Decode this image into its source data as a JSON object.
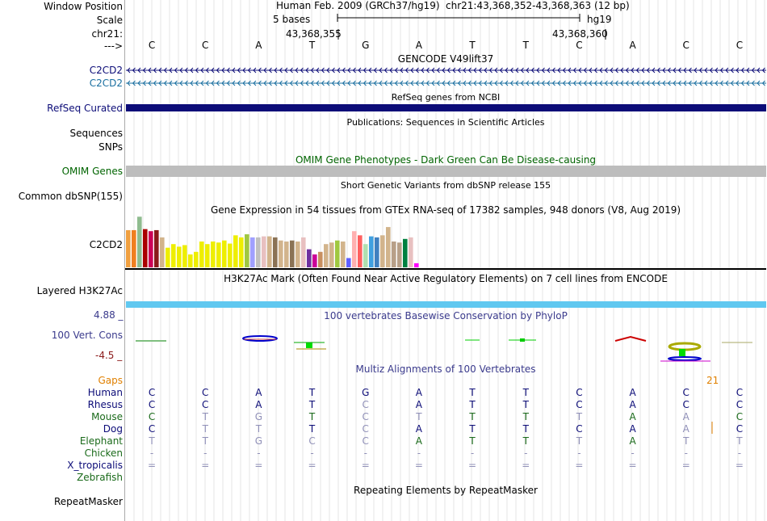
{
  "header": {
    "window_position_label": "Window Position",
    "assembly": "Human Feb. 2009 (GRCh37/hg19)",
    "position": "chr21:43,368,352-43,368,363 (12 bp)",
    "scale_label": "Scale",
    "scale_text": "5 bases",
    "scale_db": "hg19",
    "chrom_label": "chr21:",
    "pos_left": "43,368,355",
    "pos_right": "43,368,360",
    "strand_label": "--->"
  },
  "bases": [
    "C",
    "C",
    "A",
    "T",
    "G",
    "A",
    "T",
    "T",
    "C",
    "A",
    "C",
    "C"
  ],
  "gencode": {
    "title": "GENCODE V49lift37",
    "tracks": [
      {
        "label": "C2CD2",
        "color": "#0c0c78"
      },
      {
        "label": "C2CD2",
        "color": "#1a6fa0"
      }
    ]
  },
  "refseq": {
    "title": "RefSeq genes from NCBI",
    "label": "RefSeq Curated",
    "color": "#0c0c78"
  },
  "publications": {
    "title": "Publications: Sequences in Scientific Articles",
    "label1": "Sequences",
    "label2": "SNPs"
  },
  "omim": {
    "title": "OMIM Gene Phenotypes - Dark Green Can Be Disease-causing",
    "label": "OMIM Genes",
    "color": "#006400"
  },
  "dbsnp": {
    "title": "Short Genetic Variants from dbSNP release 155",
    "label": "Common dbSNP(155)"
  },
  "gtex": {
    "title": "Gene Expression in 54 tissues from GTEx RNA-seq of 17382 samples, 948 donors (V8, Aug 2019)",
    "label": "C2CD2",
    "bars": [
      {
        "v": 0.72,
        "c": "#f0a040"
      },
      {
        "v": 0.72,
        "c": "#f07f20"
      },
      {
        "v": 0.98,
        "c": "#8fbc8f"
      },
      {
        "v": 0.74,
        "c": "#aa0000"
      },
      {
        "v": 0.7,
        "c": "#cc0055"
      },
      {
        "v": 0.72,
        "c": "#8b1a1a"
      },
      {
        "v": 0.58,
        "c": "#d2b48c"
      },
      {
        "v": 0.38,
        "c": "#eeee00"
      },
      {
        "v": 0.45,
        "c": "#eeee00"
      },
      {
        "v": 0.4,
        "c": "#eeee00"
      },
      {
        "v": 0.43,
        "c": "#eeee00"
      },
      {
        "v": 0.25,
        "c": "#eeee00"
      },
      {
        "v": 0.3,
        "c": "#eeee00"
      },
      {
        "v": 0.5,
        "c": "#eeee00"
      },
      {
        "v": 0.45,
        "c": "#eeee00"
      },
      {
        "v": 0.5,
        "c": "#eeee00"
      },
      {
        "v": 0.48,
        "c": "#eeee00"
      },
      {
        "v": 0.52,
        "c": "#eeee00"
      },
      {
        "v": 0.46,
        "c": "#eeee00"
      },
      {
        "v": 0.62,
        "c": "#eeee00"
      },
      {
        "v": 0.58,
        "c": "#eeee00"
      },
      {
        "v": 0.64,
        "c": "#a0c840"
      },
      {
        "v": 0.58,
        "c": "#a0a0ff"
      },
      {
        "v": 0.58,
        "c": "#c0c0c0"
      },
      {
        "v": 0.6,
        "c": "#e8c0c0"
      },
      {
        "v": 0.6,
        "c": "#d2b48c"
      },
      {
        "v": 0.58,
        "c": "#8b7355"
      },
      {
        "v": 0.52,
        "c": "#d2b48c"
      },
      {
        "v": 0.5,
        "c": "#d2b48c"
      },
      {
        "v": 0.52,
        "c": "#8b7355"
      },
      {
        "v": 0.5,
        "c": "#d2b48c"
      },
      {
        "v": 0.58,
        "c": "#e8c0c0"
      },
      {
        "v": 0.35,
        "c": "#7030a0"
      },
      {
        "v": 0.25,
        "c": "#cc0099"
      },
      {
        "v": 0.3,
        "c": "#c89060"
      },
      {
        "v": 0.45,
        "c": "#d2b48c"
      },
      {
        "v": 0.48,
        "c": "#d2b48c"
      },
      {
        "v": 0.52,
        "c": "#a0c840"
      },
      {
        "v": 0.5,
        "c": "#d2b48c"
      },
      {
        "v": 0.18,
        "c": "#6060ff"
      },
      {
        "v": 0.7,
        "c": "#ffb0b0"
      },
      {
        "v": 0.62,
        "c": "#ff6060"
      },
      {
        "v": 0.45,
        "c": "#b0e0b0"
      },
      {
        "v": 0.6,
        "c": "#40a0e0"
      },
      {
        "v": 0.58,
        "c": "#4080c0"
      },
      {
        "v": 0.62,
        "c": "#d2b48c"
      },
      {
        "v": 0.78,
        "c": "#d2b48c"
      },
      {
        "v": 0.5,
        "c": "#b8a088"
      },
      {
        "v": 0.48,
        "c": "#b8a088"
      },
      {
        "v": 0.55,
        "c": "#008040"
      },
      {
        "v": 0.58,
        "c": "#e8c0c0"
      },
      {
        "v": 0.08,
        "c": "#ff00ff"
      }
    ]
  },
  "h3k27ac": {
    "title": "H3K27Ac Mark (Often Found Near Active Regulatory Elements) on 7 cell lines from ENCODE",
    "label": "Layered H3K27Ac",
    "color": "#60c8f0"
  },
  "phylop": {
    "title": "100 vertebrates Basewise Conservation by PhyloP",
    "label": "100 Vert. Cons",
    "max_label": "4.88 _",
    "min_label": "-4.5 _",
    "title_color": "#3a3a8c"
  },
  "multiz": {
    "title": "Multiz Alignments of 100 Vertebrates",
    "gaps_label": "Gaps",
    "gaps_value": "21",
    "species": [
      {
        "name": "Human",
        "color": "#0c0c78",
        "seq": [
          "C",
          "C",
          "A",
          "T",
          "G",
          "A",
          "T",
          "T",
          "C",
          "A",
          "C",
          "C"
        ],
        "dim": []
      },
      {
        "name": "Rhesus",
        "color": "#0c0c78",
        "seq": [
          "C",
          "C",
          "A",
          "T",
          "C",
          "A",
          "T",
          "T",
          "C",
          "A",
          "C",
          "C"
        ],
        "dim": [
          4
        ]
      },
      {
        "name": "Mouse",
        "color": "#1a6a1a",
        "seq": [
          "C",
          "T",
          "G",
          "T",
          "C",
          "T",
          "T",
          "T",
          "T",
          "A",
          "A",
          "C"
        ],
        "dim": [
          1,
          2,
          4,
          5,
          8,
          10
        ]
      },
      {
        "name": "Dog",
        "color": "#0c0c78",
        "seq": [
          "C",
          "T",
          "T",
          "T",
          "C",
          "A",
          "T",
          "T",
          "C",
          "A",
          "A",
          "C"
        ],
        "dim": [
          1,
          2,
          4,
          10
        ]
      },
      {
        "name": "Elephant",
        "color": "#1a6a1a",
        "seq": [
          "T",
          "T",
          "G",
          "C",
          "C",
          "A",
          "T",
          "T",
          "T",
          "A",
          "T",
          "T"
        ],
        "dim": [
          0,
          1,
          2,
          3,
          4,
          8,
          10,
          11
        ]
      },
      {
        "name": "Chicken",
        "color": "#1a6a1a",
        "seq": [
          "-",
          "-",
          "-",
          "-",
          "-",
          "-",
          "-",
          "-",
          "-",
          "-",
          "-",
          "-"
        ],
        "dim": [
          0,
          1,
          2,
          3,
          4,
          5,
          6,
          7,
          8,
          9,
          10,
          11
        ]
      },
      {
        "name": "X_tropicalis",
        "color": "#0c0c78",
        "seq": [
          "=",
          "=",
          "=",
          "=",
          "=",
          "=",
          "=",
          "=",
          "=",
          "=",
          "=",
          "="
        ],
        "dim": [
          0,
          1,
          2,
          3,
          4,
          5,
          6,
          7,
          8,
          9,
          10,
          11
        ]
      },
      {
        "name": "Zebrafish",
        "color": "#1a6a1a",
        "seq": [],
        "dim": []
      }
    ]
  },
  "repeatmasker": {
    "title": "Repeating Elements by RepeatMasker",
    "label": "RepeatMasker"
  }
}
